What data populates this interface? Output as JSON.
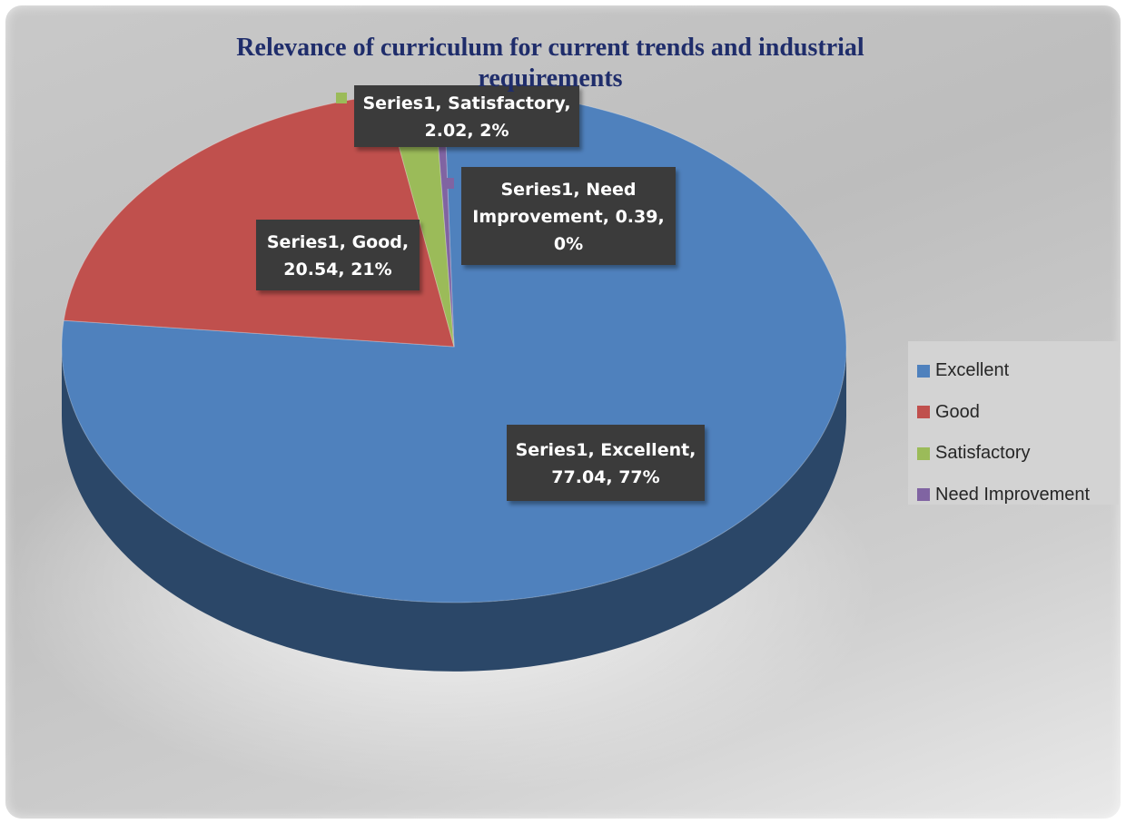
{
  "chart_data": {
    "type": "pie",
    "title": "Relevance of curriculum for current trends and industrial requirements",
    "series_name": "Series1",
    "slices": [
      {
        "category": "Excellent",
        "value": 77.04,
        "percent": "77%",
        "color": "#4f81bd"
      },
      {
        "category": "Good",
        "value": 20.54,
        "percent": "21%",
        "color": "#c0504d"
      },
      {
        "category": "Satisfactory",
        "value": 2.02,
        "percent": "2%",
        "color": "#9bbb59"
      },
      {
        "category": "Need Improvement",
        "value": 0.39,
        "percent": "0%",
        "color": "#8064a2"
      }
    ],
    "data_labels": [
      {
        "category": "Excellent",
        "lines": [
          "Series1, Excellent,",
          "77.04, 77%"
        ]
      },
      {
        "category": "Good",
        "lines": [
          "Series1, Good,",
          "20.54, 21%"
        ]
      },
      {
        "category": "Satisfactory",
        "lines": [
          "Series1, Satisfactory,",
          "2.02, 2%"
        ]
      },
      {
        "category": "Need Improvement",
        "lines": [
          "Series1, Need",
          "Improvement, 0.39,",
          "0%"
        ]
      }
    ],
    "legend": {
      "position": "right",
      "entries": [
        "Excellent",
        "Good",
        "Satisfactory",
        "Need Improvement"
      ]
    },
    "style": "3d-pie",
    "label_style": "dark-box-callout"
  }
}
